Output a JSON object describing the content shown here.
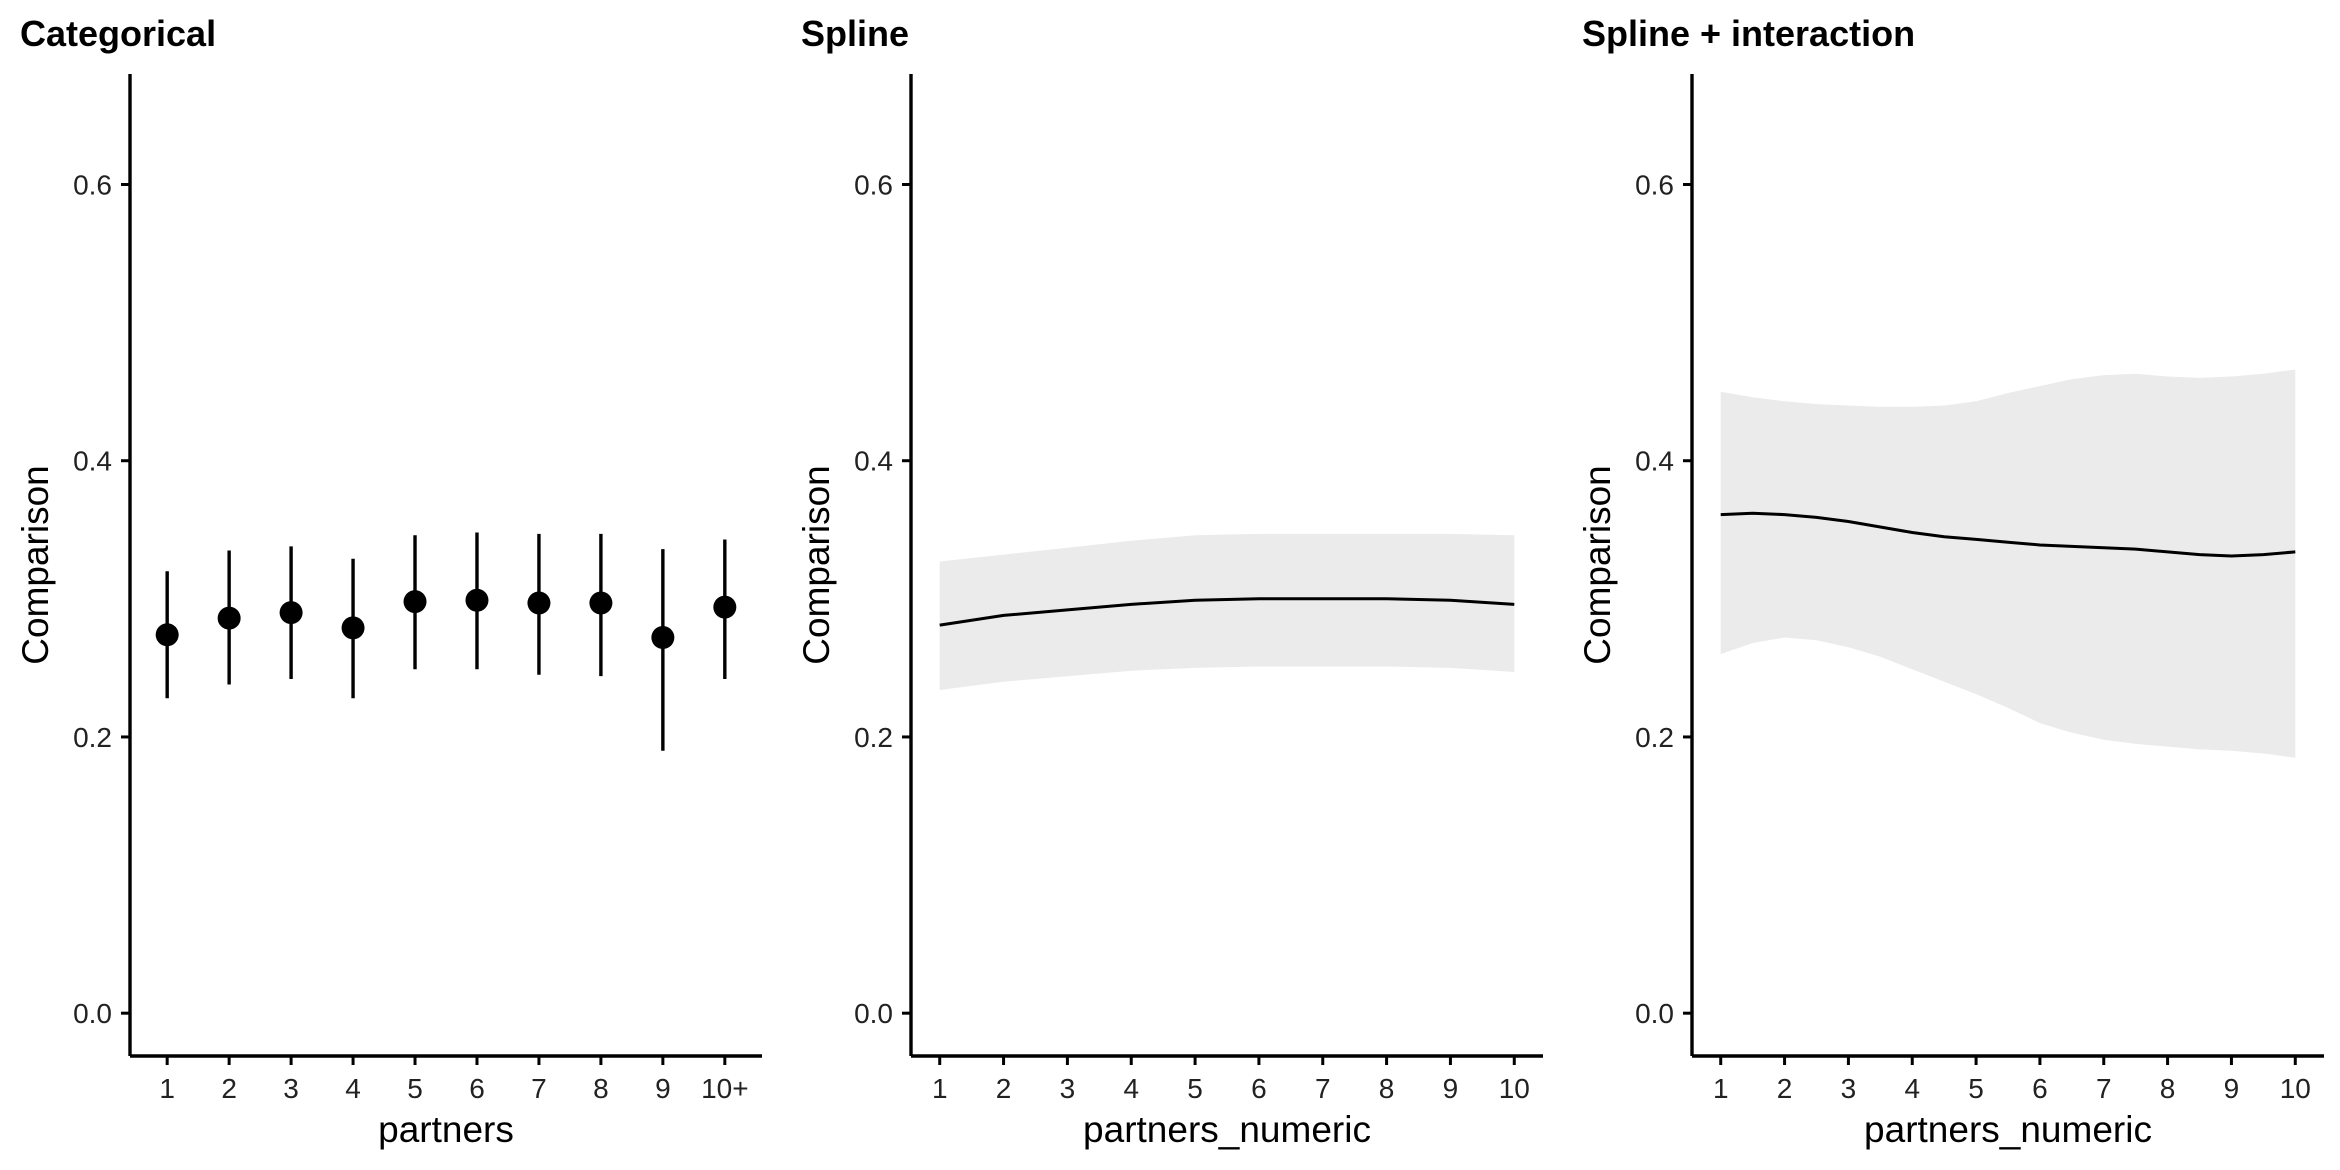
{
  "chart_data": [
    {
      "type": "scatter",
      "title": "Categorical",
      "xlabel": "partners",
      "ylabel": "Comparison",
      "ylim": [
        -0.031,
        0.68
      ],
      "yticks": [
        0.0,
        0.2,
        0.4,
        0.6
      ],
      "ytick_labels": [
        "0.0",
        "0.2",
        "0.4",
        "0.6"
      ],
      "categories": [
        "1",
        "2",
        "3",
        "4",
        "5",
        "6",
        "7",
        "8",
        "9",
        "10+"
      ],
      "series": [
        {
          "values": [
            0.274,
            0.286,
            0.29,
            0.279,
            0.298,
            0.299,
            0.297,
            0.297,
            0.272,
            0.294
          ],
          "lower": [
            0.228,
            0.238,
            0.242,
            0.228,
            0.249,
            0.249,
            0.245,
            0.244,
            0.19,
            0.242
          ],
          "upper": [
            0.32,
            0.335,
            0.338,
            0.329,
            0.346,
            0.348,
            0.347,
            0.347,
            0.336,
            0.343
          ]
        }
      ],
      "grid": false
    },
    {
      "type": "line",
      "title": "Spline",
      "xlabel": "partners_numeric",
      "ylabel": "Comparison",
      "ylim": [
        -0.031,
        0.68
      ],
      "yticks": [
        0.0,
        0.2,
        0.4,
        0.6
      ],
      "ytick_labels": [
        "0.0",
        "0.2",
        "0.4",
        "0.6"
      ],
      "xlim": [
        0.55,
        10.45
      ],
      "x": [
        1,
        2,
        3,
        4,
        5,
        6,
        7,
        8,
        9,
        10
      ],
      "series": [
        {
          "values": [
            0.281,
            0.288,
            0.292,
            0.296,
            0.299,
            0.3,
            0.3,
            0.3,
            0.299,
            0.296
          ],
          "lower": [
            0.234,
            0.24,
            0.244,
            0.248,
            0.25,
            0.251,
            0.251,
            0.251,
            0.25,
            0.247
          ],
          "upper": [
            0.327,
            0.332,
            0.337,
            0.342,
            0.346,
            0.347,
            0.347,
            0.347,
            0.347,
            0.346
          ]
        }
      ],
      "grid": false
    },
    {
      "type": "line",
      "title": "Spline + interaction",
      "xlabel": "partners_numeric",
      "ylabel": "Comparison",
      "ylim": [
        -0.031,
        0.68
      ],
      "yticks": [
        0.0,
        0.2,
        0.4,
        0.6
      ],
      "ytick_labels": [
        "0.0",
        "0.2",
        "0.4",
        "0.6"
      ],
      "xlim": [
        0.55,
        10.45
      ],
      "x": [
        1,
        1.5,
        2,
        2.5,
        3,
        3.5,
        4,
        4.5,
        5,
        5.5,
        6,
        6.5,
        7,
        7.5,
        8,
        8.5,
        9,
        9.5,
        10
      ],
      "series": [
        {
          "values": [
            0.361,
            0.362,
            0.361,
            0.359,
            0.356,
            0.352,
            0.348,
            0.345,
            0.343,
            0.341,
            0.339,
            0.338,
            0.337,
            0.336,
            0.334,
            0.332,
            0.331,
            0.332,
            0.334
          ],
          "lower": [
            0.26,
            0.268,
            0.272,
            0.27,
            0.265,
            0.258,
            0.249,
            0.24,
            0.231,
            0.221,
            0.21,
            0.203,
            0.198,
            0.195,
            0.193,
            0.191,
            0.19,
            0.188,
            0.185
          ],
          "upper": [
            0.45,
            0.446,
            0.443,
            0.441,
            0.44,
            0.439,
            0.439,
            0.44,
            0.443,
            0.449,
            0.454,
            0.459,
            0.462,
            0.463,
            0.461,
            0.46,
            0.461,
            0.463,
            0.466
          ]
        }
      ],
      "grid": false
    }
  ]
}
